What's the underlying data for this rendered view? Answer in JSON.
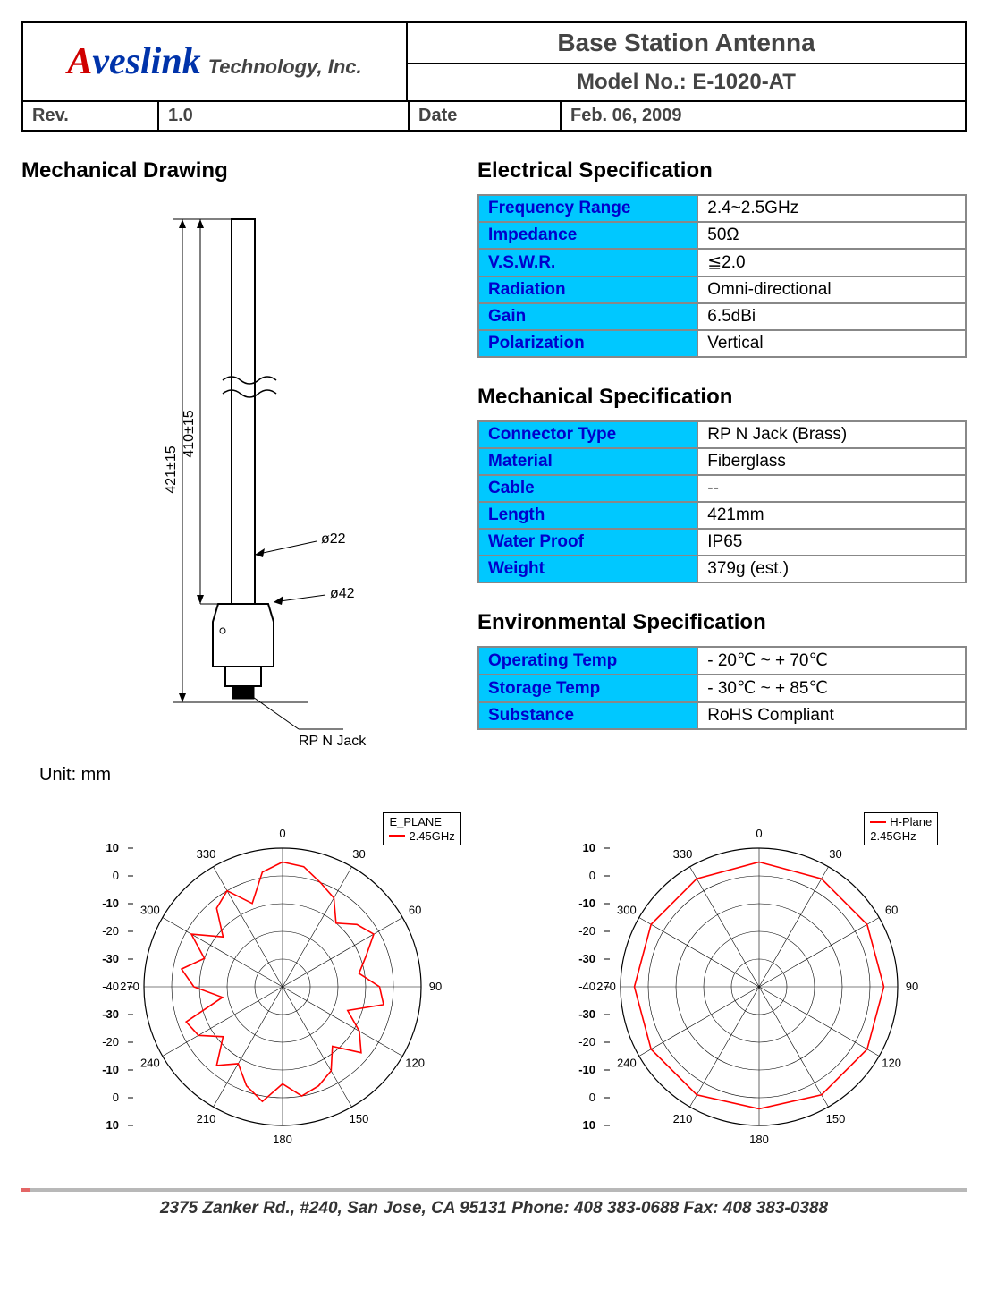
{
  "header": {
    "logo_a": "A",
    "logo_rest": "veslink",
    "logo_tech": "Technology, Inc.",
    "title": "Base Station Antenna",
    "model_label": "Model No.:  E-1020-AT",
    "rev_label": "Rev.",
    "rev_value": "1.0",
    "date_label": "Date",
    "date_value": "Feb. 06, 2009"
  },
  "sections": {
    "mech_drawing_title": "Mechanical Drawing",
    "elec_title": "Electrical Specification",
    "mech_title": "Mechanical Specification",
    "env_title": "Environmental Specification",
    "unit": "Unit: mm"
  },
  "drawing": {
    "dim_left_outer": "421±15",
    "dim_left_inner": "410±15",
    "dia_upper": "ø22",
    "dia_lower": "ø42",
    "connector": "RP N Jack",
    "colors": {
      "stroke": "#000000",
      "fill": "#ffffff"
    }
  },
  "electrical": {
    "rows": [
      {
        "label": "Frequency Range",
        "value": "2.4~2.5GHz"
      },
      {
        "label": "Impedance",
        "value": "50Ω"
      },
      {
        "label": "V.S.W.R.",
        "value": "≦2.0"
      },
      {
        "label": "Radiation",
        "value": "Omni-directional"
      },
      {
        "label": "Gain",
        "value": "6.5dBi"
      },
      {
        "label": "Polarization",
        "value": "Vertical"
      }
    ]
  },
  "mechanical": {
    "rows": [
      {
        "label": "Connector Type",
        "value": "RP N Jack (Brass)"
      },
      {
        "label": "Material",
        "value": "Fiberglass"
      },
      {
        "label": "Cable",
        "value": "--"
      },
      {
        "label": "Length",
        "value": "421mm"
      },
      {
        "label": "Water Proof",
        "value": "IP65"
      },
      {
        "label": "Weight",
        "value": "379g (est.)"
      }
    ]
  },
  "environmental": {
    "rows": [
      {
        "label": "Operating Temp",
        "value": "- 20℃ ~ + 70℃"
      },
      {
        "label": "Storage Temp",
        "value": "- 30℃ ~ + 85℃"
      },
      {
        "label": "Substance",
        "value": "RoHS Compliant"
      }
    ]
  },
  "charts": {
    "e_plane": {
      "title": "E_PLANE",
      "freq": "2.45GHz",
      "angle_ticks": [
        0,
        30,
        60,
        90,
        120,
        150,
        180,
        210,
        240,
        270,
        300,
        330
      ],
      "radial_labels_left": [
        "10",
        "0",
        "-10",
        "-20",
        "-30",
        "-40",
        "-30",
        "-20",
        "-10",
        "0",
        "10"
      ],
      "rings_db": [
        10,
        0,
        -10,
        -20,
        -30,
        -40
      ],
      "series_color": "#ff0000",
      "grid_color": "#000000",
      "data_db_per_angle": {
        "0": 5,
        "10": 4,
        "20": 0,
        "30": -3,
        "40": -10,
        "50": -5,
        "60": -2,
        "70": -8,
        "80": -12,
        "90": -5,
        "100": -3,
        "110": -15,
        "120": -8,
        "130": -3,
        "140": -12,
        "150": -5,
        "160": -2,
        "170": 0,
        "180": -5,
        "190": 2,
        "200": -2,
        "210": -8,
        "220": -3,
        "230": -12,
        "240": -5,
        "250": -3,
        "260": -18,
        "270": -8,
        "280": -3,
        "290": -10,
        "300": -2,
        "310": -12,
        "320": -3,
        "330": 0,
        "340": -8,
        "350": 2
      }
    },
    "h_plane": {
      "title": "H-Plane",
      "freq": "2.45GHz",
      "angle_ticks": [
        0,
        30,
        60,
        90,
        120,
        150,
        180,
        210,
        240,
        270,
        300,
        330
      ],
      "radial_labels_left": [
        "10",
        "0",
        "-10",
        "-20",
        "-30",
        "-40",
        "-30",
        "-20",
        "-10",
        "0",
        "10"
      ],
      "rings_db": [
        10,
        0,
        -10,
        -20,
        -30,
        -40
      ],
      "series_color": "#ff0000",
      "grid_color": "#000000",
      "data_db_per_angle": {
        "0": 5,
        "30": 5,
        "60": 5,
        "90": 5,
        "120": 5,
        "150": 5,
        "180": 4,
        "210": 5,
        "240": 5,
        "270": 5,
        "300": 5,
        "330": 5
      }
    }
  },
  "table_style": {
    "label_bg": "#00c8ff",
    "label_fg": "#0000cc",
    "value_bg": "#ffffff",
    "value_fg": "#000000",
    "border": "#888888",
    "font_size_pt": 14
  },
  "footer": "2375 Zanker Rd., #240, San Jose, CA 95131  Phone: 408 383-0688 Fax: 408 383-0388"
}
